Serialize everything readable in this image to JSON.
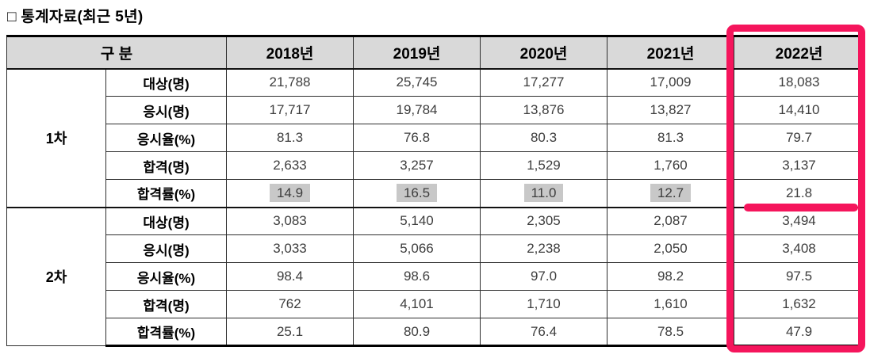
{
  "title": "□ 통계자료(최근 5년)",
  "table": {
    "header": {
      "category": "구 분",
      "years": [
        "2018년",
        "2019년",
        "2020년",
        "2021년",
        "2022년"
      ]
    },
    "groups": [
      {
        "name": "1차",
        "rows": [
          {
            "label": "대상(명)",
            "values": [
              "21,788",
              "25,745",
              "17,277",
              "17,009",
              "18,083"
            ]
          },
          {
            "label": "응시(명)",
            "values": [
              "17,717",
              "19,784",
              "13,876",
              "13,827",
              "14,410"
            ]
          },
          {
            "label": "응시율(%)",
            "values": [
              "81.3",
              "76.8",
              "80.3",
              "81.3",
              "79.7"
            ]
          },
          {
            "label": "합격(명)",
            "values": [
              "2,633",
              "3,257",
              "1,529",
              "1,760",
              "3,137"
            ]
          },
          {
            "label": "합격률(%)",
            "values": [
              "14.9",
              "16.5",
              "11.0",
              "12.7",
              "21.8"
            ],
            "gray_highlight": [
              0,
              1,
              2,
              3
            ]
          }
        ]
      },
      {
        "name": "2차",
        "rows": [
          {
            "label": "대상(명)",
            "values": [
              "3,083",
              "5,140",
              "2,305",
              "2,087",
              "3,494"
            ]
          },
          {
            "label": "응시(명)",
            "values": [
              "3,033",
              "5,066",
              "2,238",
              "2,050",
              "3,408"
            ]
          },
          {
            "label": "응시율(%)",
            "values": [
              "98.4",
              "98.6",
              "97.0",
              "98.2",
              "97.5"
            ]
          },
          {
            "label": "합격(명)",
            "values": [
              "762",
              "4,101",
              "1,710",
              "1,610",
              "1,632"
            ]
          },
          {
            "label": "합격률(%)",
            "values": [
              "25.1",
              "80.9",
              "76.4",
              "78.5",
              "47.9"
            ]
          }
        ]
      }
    ]
  },
  "annotations": {
    "column_highlight": {
      "target": "2022년",
      "color": "#f5155c"
    },
    "value_underline": {
      "target": "21.8",
      "color": "#f5155c"
    },
    "gray_cell_highlight_color": "#c8c8c8",
    "header_background_color": "#d9d9d9"
  }
}
